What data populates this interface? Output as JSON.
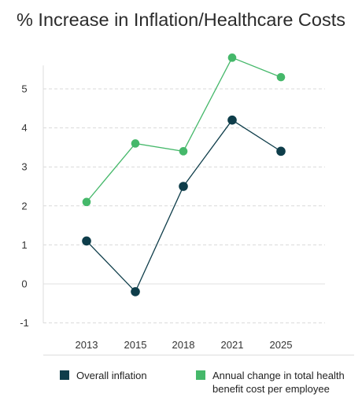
{
  "chart_data": {
    "type": "line",
    "title": "% Increase in Inflation/Healthcare Costs",
    "categories": [
      "2013",
      "2015",
      "2018",
      "2021",
      "2025"
    ],
    "y_ticks": [
      "5",
      "4",
      "3",
      "2",
      "1",
      "0",
      "-1"
    ],
    "ylim": [
      -1,
      5.6
    ],
    "grid": true,
    "legend_position": "bottom",
    "series": [
      {
        "name": "Overall inflation",
        "values": [
          1.1,
          -0.2,
          2.5,
          4.2,
          3.4
        ],
        "color": "#0e3d4a"
      },
      {
        "name": "Annual change in total health benefit cost per employee",
        "values": [
          2.1,
          3.6,
          3.4,
          5.8,
          5.3
        ],
        "color": "#45b86a"
      }
    ]
  }
}
